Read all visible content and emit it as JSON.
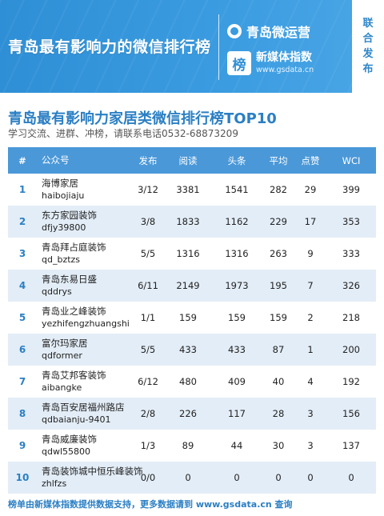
{
  "banner": {
    "title": "青岛最有影响力的微信排行榜",
    "brand1": "青岛微运营",
    "brand2_logo": "榜",
    "brand2_name": "新媒体指数",
    "brand2_url": "www.gsdata.cn",
    "side_label": "联合发布"
  },
  "heading": {
    "title": "青岛最有影响力家居类微信排行榜TOP10",
    "subtitle": "学习交流、进群、冲榜，请联系电话0532-68873209"
  },
  "table": {
    "columns": [
      "#",
      "公众号",
      "发布",
      "阅读",
      "头条",
      "平均",
      "点赞",
      "WCI"
    ],
    "rows": [
      {
        "rank": "1",
        "name": "海博家居",
        "id": "haibojiaju",
        "pub": "3/12",
        "read": "3381",
        "head": "1541",
        "avg": "282",
        "like": "29",
        "wci": "399"
      },
      {
        "rank": "2",
        "name": "东方家园装饰",
        "id": "dfjy39800",
        "pub": "3/8",
        "read": "1833",
        "head": "1162",
        "avg": "229",
        "like": "17",
        "wci": "353"
      },
      {
        "rank": "3",
        "name": "青岛拜占庭装饰",
        "id": "qd_bztzs",
        "pub": "5/5",
        "read": "1316",
        "head": "1316",
        "avg": "263",
        "like": "9",
        "wci": "333"
      },
      {
        "rank": "4",
        "name": "青岛东易日盛",
        "id": "qddrys",
        "pub": "6/11",
        "read": "2149",
        "head": "1973",
        "avg": "195",
        "like": "7",
        "wci": "326"
      },
      {
        "rank": "5",
        "name": "青岛业之峰装饰",
        "id": "yezhifengzhuangshi",
        "pub": "1/1",
        "read": "159",
        "head": "159",
        "avg": "159",
        "like": "2",
        "wci": "218"
      },
      {
        "rank": "6",
        "name": "富尔玛家居",
        "id": "qdformer",
        "pub": "5/5",
        "read": "433",
        "head": "433",
        "avg": "87",
        "like": "1",
        "wci": "200"
      },
      {
        "rank": "7",
        "name": "青岛艾邦客装饰",
        "id": "aibangke",
        "pub": "6/12",
        "read": "480",
        "head": "409",
        "avg": "40",
        "like": "4",
        "wci": "192"
      },
      {
        "rank": "8",
        "name": "青岛百安居福州路店",
        "id": "qdbaianju-9401",
        "pub": "2/8",
        "read": "226",
        "head": "117",
        "avg": "28",
        "like": "3",
        "wci": "156"
      },
      {
        "rank": "9",
        "name": "青岛威廉装饰",
        "id": "qdwl55800",
        "pub": "1/3",
        "read": "89",
        "head": "44",
        "avg": "30",
        "like": "3",
        "wci": "137"
      },
      {
        "rank": "10",
        "name": "青岛装饰城中恒乐峰装饰",
        "id": "zhlfzs",
        "pub": "0/0",
        "read": "0",
        "head": "0",
        "avg": "0",
        "like": "0",
        "wci": "0"
      }
    ]
  },
  "footer": "榜单由新媒体指数提供数据支持，更多数据请到 www.gsdata.cn 查询",
  "colors": {
    "banner_blue": "#3a9be0",
    "header_blue": "#4a98d8",
    "title_blue": "#2b7fc4",
    "stripe": "#e3edf7"
  }
}
